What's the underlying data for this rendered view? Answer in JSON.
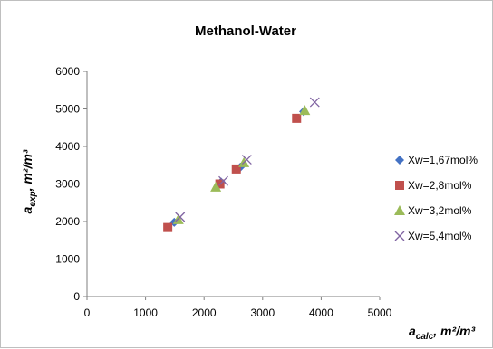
{
  "chart_data": {
    "type": "scatter",
    "title": "Methanol-Water",
    "xlabel": {
      "base": "a",
      "sub": "calc",
      "unit": ", m²/m³"
    },
    "ylabel": {
      "base": "a",
      "sub": "exp",
      "unit": ", m²/m³"
    },
    "xlim": [
      0,
      5000
    ],
    "ylim": [
      0,
      6000
    ],
    "xticks": [
      0,
      1000,
      2000,
      3000,
      4000,
      5000
    ],
    "yticks": [
      0,
      1000,
      2000,
      3000,
      4000,
      5000,
      6000
    ],
    "grid": false,
    "legend_position": "right",
    "series": [
      {
        "name": "Xw=1,67mol%",
        "marker": "diamond",
        "color": "#4472C4",
        "x": [
          1490,
          2290,
          2620,
          3700
        ],
        "y": [
          1980,
          3050,
          3450,
          4930
        ]
      },
      {
        "name": "Xw=2,8mol%",
        "marker": "square",
        "color": "#C0504D",
        "x": [
          1380,
          2270,
          2550,
          3580
        ],
        "y": [
          1840,
          3000,
          3400,
          4750
        ]
      },
      {
        "name": "Xw=3,2mol%",
        "marker": "triangle",
        "color": "#9BBB59",
        "x": [
          1560,
          2200,
          2680,
          3720
        ],
        "y": [
          2050,
          2920,
          3570,
          4960
        ]
      },
      {
        "name": "Xw=5,4mol%",
        "marker": "x",
        "color": "#8064A2",
        "x": [
          1590,
          2330,
          2730,
          3890
        ],
        "y": [
          2120,
          3080,
          3650,
          5180
        ]
      }
    ]
  }
}
